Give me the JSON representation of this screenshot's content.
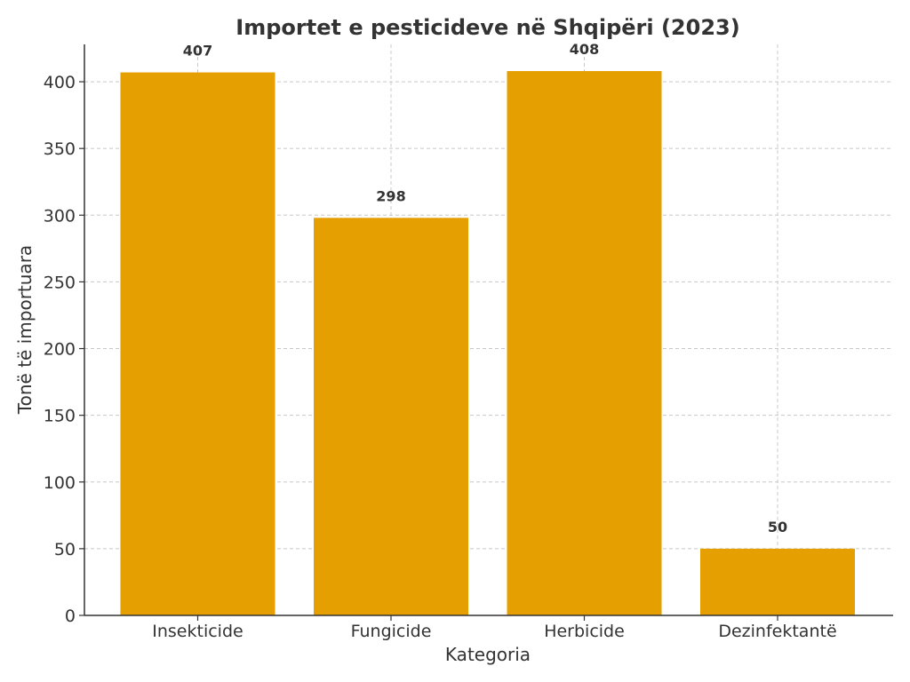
{
  "chart_data": {
    "type": "bar",
    "title": "Importet e pesticideve në Shqipëri (2023)",
    "xlabel": "Kategoria",
    "ylabel": "Tonë të importuara",
    "categories": [
      "Insekticide",
      "Fungicide",
      "Herbicide",
      "Dezinfektantë"
    ],
    "values": [
      407,
      298,
      408,
      50
    ],
    "data_labels": [
      "407",
      "298",
      "408",
      "50"
    ],
    "ylim": [
      0,
      428
    ],
    "yticks": [
      0,
      50,
      100,
      150,
      200,
      250,
      300,
      350,
      400
    ],
    "grid": true,
    "bar_color": "#E69F00"
  }
}
